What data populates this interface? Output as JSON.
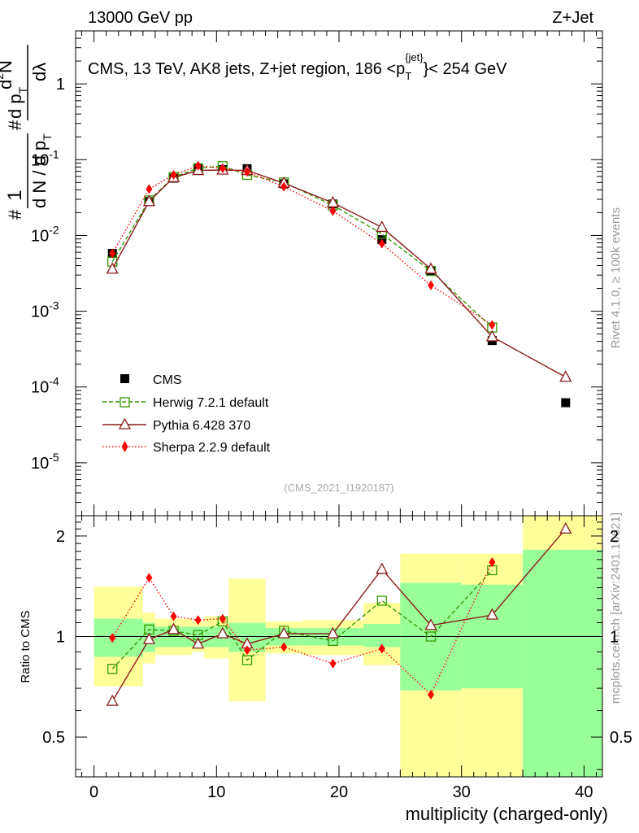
{
  "header": {
    "left": "13000 GeV pp",
    "right": "Z+Jet"
  },
  "side_labels": {
    "rivet": "Rivet 4.1.0, ≥ 100k events",
    "site": "mcplots.cern.ch [arXiv:2401.10621]"
  },
  "colors": {
    "cms": "#000000",
    "herwig": "#339900",
    "pythia": "#8b1a1a",
    "sherpa": "#ff0000",
    "band_inner": "#99ff99",
    "band_outer": "#ffff99"
  },
  "chart_data": [
    {
      "type": "scatter",
      "panel": "main",
      "title": "CMS, 13 TeV, AK8 jets, Z+jet region, 186 <p_T^{jet}< 254 GeV",
      "title_parts": {
        "lead": "CMS, 13 TeV, AK8 jets, Z+jet region, 186 <p",
        "sub": "T",
        "sup": "{jet}",
        "tail": "}< 254 GeV"
      },
      "ylabel": "1/N dN/dp_T d²N/dp_T dλ",
      "ylabel_parts": [
        "#",
        "1",
        "d N / d p",
        "T",
        "#",
        "d p",
        "T",
        "d",
        "2",
        "N",
        "dλ"
      ],
      "yscale": "log",
      "ylim": [
        2e-06,
        5
      ],
      "yticks": [
        {
          "v": 1e-05,
          "label": "10",
          "exp": "-5"
        },
        {
          "v": 0.0001,
          "label": "10",
          "exp": "-4"
        },
        {
          "v": 0.001,
          "label": "10",
          "exp": "-3"
        },
        {
          "v": 0.01,
          "label": "10",
          "exp": "-2"
        },
        {
          "v": 0.1,
          "label": "10",
          "exp": "-1"
        },
        {
          "v": 1,
          "label": "1",
          "exp": ""
        }
      ],
      "xlim": [
        -1.5,
        41.5
      ],
      "watermark": "(CMS_2021_I1920187)",
      "legend": [
        "CMS",
        "Herwig 7.2.1 default",
        "Pythia 6.428 370",
        "Sherpa 2.2.9 default"
      ],
      "series": [
        {
          "name": "CMS",
          "x": [
            1.5,
            4.5,
            6.5,
            8.5,
            10.5,
            12.5,
            15.5,
            19.5,
            23.5,
            27.5,
            32.5,
            38.5
          ],
          "y": [
            0.0058,
            0.028,
            0.057,
            0.077,
            0.074,
            0.076,
            0.048,
            0.026,
            0.0088,
            0.0034,
            0.00041,
            6.2e-05
          ]
        },
        {
          "name": "Herwig 7.2.1 default",
          "x": [
            1.5,
            4.5,
            6.5,
            8.5,
            10.5,
            12.5,
            15.5,
            19.5,
            23.5,
            27.5,
            32.5
          ],
          "y": [
            0.0045,
            0.029,
            0.059,
            0.077,
            0.082,
            0.063,
            0.05,
            0.025,
            0.0105,
            0.0034,
            0.00061
          ]
        },
        {
          "name": "Pythia 6.428 370",
          "x": [
            1.5,
            4.5,
            6.5,
            8.5,
            10.5,
            12.5,
            15.5,
            19.5,
            23.5,
            27.5,
            32.5,
            38.5
          ],
          "y": [
            0.0036,
            0.028,
            0.058,
            0.072,
            0.073,
            0.072,
            0.049,
            0.027,
            0.0128,
            0.0036,
            0.00046,
            0.000135
          ]
        },
        {
          "name": "Sherpa 2.2.9 default",
          "x": [
            1.5,
            4.5,
            6.5,
            8.5,
            10.5,
            12.5,
            15.5,
            19.5,
            23.5,
            27.5,
            32.5
          ],
          "y": [
            0.0058,
            0.041,
            0.063,
            0.083,
            0.077,
            0.069,
            0.044,
            0.021,
            0.0078,
            0.0022,
            0.00066
          ]
        }
      ]
    },
    {
      "type": "scatter",
      "panel": "ratio",
      "ylabel": "Ratio to CMS",
      "xlabel": "multiplicity (charged-only)",
      "ylim": [
        0.38,
        2.3
      ],
      "xlim": [
        -1.5,
        41.5
      ],
      "xticks": [
        0,
        10,
        20,
        30,
        40
      ],
      "yticks": [
        0.5,
        1,
        2
      ],
      "reference_line": 1,
      "bands": [
        {
          "x0": 0,
          "x1": 4,
          "inner": [
            0.87,
            1.13
          ],
          "outer": [
            0.71,
            1.41
          ]
        },
        {
          "x0": 4,
          "x1": 5,
          "inner": [
            0.9,
            1.1
          ],
          "outer": [
            0.83,
            1.18
          ]
        },
        {
          "x0": 5,
          "x1": 8,
          "inner": [
            0.93,
            1.07
          ],
          "outer": [
            0.88,
            1.13
          ]
        },
        {
          "x0": 8,
          "x1": 9,
          "inner": [
            0.93,
            1.07
          ],
          "outer": [
            0.9,
            1.11
          ]
        },
        {
          "x0": 9,
          "x1": 11,
          "inner": [
            0.93,
            1.07
          ],
          "outer": [
            0.86,
            1.15
          ]
        },
        {
          "x0": 11,
          "x1": 14,
          "inner": [
            0.9,
            1.1
          ],
          "outer": [
            0.64,
            1.49
          ]
        },
        {
          "x0": 14,
          "x1": 17,
          "inner": [
            0.94,
            1.06
          ],
          "outer": [
            0.89,
            1.11
          ]
        },
        {
          "x0": 17,
          "x1": 22,
          "inner": [
            0.94,
            1.06
          ],
          "outer": [
            0.88,
            1.12
          ]
        },
        {
          "x0": 22,
          "x1": 25,
          "inner": [
            0.93,
            1.09
          ],
          "outer": [
            0.82,
            1.26
          ]
        },
        {
          "x0": 25,
          "x1": 30,
          "inner": [
            0.69,
            1.45
          ],
          "outer": [
            0.34,
            1.77
          ]
        },
        {
          "x0": 30,
          "x1": 35,
          "inner": [
            0.7,
            1.43
          ],
          "outer": [
            0.34,
            1.77
          ]
        },
        {
          "x0": 35,
          "x1": 41.5,
          "inner": [
            0.34,
            1.82
          ],
          "outer": [
            0.34,
            2.3
          ]
        }
      ],
      "series": [
        {
          "name": "Herwig 7.2.1 default",
          "x": [
            1.5,
            4.5,
            6.5,
            8.5,
            10.5,
            12.5,
            15.5,
            19.5,
            23.5,
            27.5,
            32.5
          ],
          "y": [
            0.8,
            1.05,
            1.04,
            1.01,
            1.11,
            0.85,
            1.04,
            0.97,
            1.28,
            1.0,
            1.58
          ]
        },
        {
          "name": "Pythia 6.428 370",
          "x": [
            1.5,
            4.5,
            6.5,
            8.5,
            10.5,
            12.5,
            15.5,
            19.5,
            23.5,
            27.5,
            32.5,
            38.5
          ],
          "y": [
            0.64,
            0.98,
            1.05,
            0.95,
            1.02,
            0.95,
            1.02,
            1.02,
            1.59,
            1.08,
            1.16,
            2.1
          ]
        },
        {
          "name": "Sherpa 2.2.9 default",
          "x": [
            1.5,
            4.5,
            6.5,
            8.5,
            10.5,
            12.5,
            15.5,
            19.5,
            23.5,
            27.5,
            32.5
          ],
          "y": [
            0.99,
            1.5,
            1.15,
            1.12,
            1.13,
            0.91,
            0.93,
            0.83,
            0.92,
            0.67,
            1.67
          ]
        }
      ]
    }
  ]
}
